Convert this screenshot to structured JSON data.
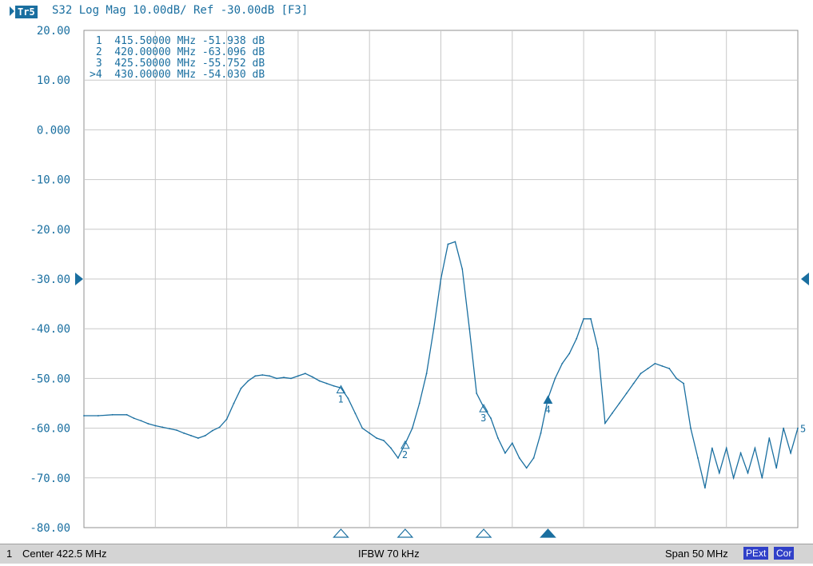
{
  "header": {
    "trace_badge": "Tr5",
    "trace_title": "S32 Log Mag 10.00dB/ Ref -30.00dB [F3]"
  },
  "status_bar": {
    "channel": "1",
    "center": "Center 422.5 MHz",
    "ifbw": "IFBW 70 kHz",
    "span": "Span 50 MHz",
    "badges": [
      "PExt",
      "Cor"
    ]
  },
  "colors": {
    "trace": "#1a6fa0",
    "grid": "#c8c8c8",
    "axis_text": "#1a6fa0",
    "status_badge": "#3040c8"
  },
  "chart_data": {
    "type": "line",
    "title": "S32 Log Mag 10.00dB/ Ref -30.00dB [F3]",
    "xlabel": "",
    "ylabel": "",
    "xlim": [
      397.5,
      447.5
    ],
    "ylim": [
      -80,
      20
    ],
    "grid": true,
    "ytick_labels": [
      "20.00",
      "10.00",
      "0.000",
      "-10.00",
      "-20.00",
      "-30.00",
      "-40.00",
      "-50.00",
      "-60.00",
      "-70.00",
      "-80.00"
    ],
    "reference_level": -30,
    "series": [
      {
        "x": [
          397.5,
          398.5,
          399.5,
          400.5,
          401.0,
          401.5,
          402.0,
          402.5,
          403.0,
          403.5,
          404.0,
          404.5,
          405.0,
          405.5,
          406.0,
          406.5,
          407.0,
          407.5,
          408.0,
          408.5,
          409.0,
          409.5,
          410.0,
          410.5,
          411.0,
          411.5,
          412.0,
          412.5,
          413.0,
          413.5,
          414.0,
          414.5,
          415.0,
          415.5,
          416.0,
          416.5,
          417.0,
          417.5,
          418.0,
          418.5,
          419.0,
          419.5,
          420.0,
          420.5,
          421.0,
          421.5,
          422.0,
          422.5,
          423.0,
          423.5,
          424.0,
          424.5,
          425.0,
          425.5,
          426.0,
          426.5,
          427.0,
          427.5,
          428.0,
          428.5,
          429.0,
          429.5,
          430.0,
          430.5,
          431.0,
          431.5,
          432.0,
          432.5,
          433.0,
          433.5,
          434.0,
          434.5,
          435.0,
          435.5,
          436.0,
          436.5,
          437.0,
          437.5,
          438.0,
          438.5,
          439.0,
          439.5,
          440.0,
          440.5,
          441.0,
          441.5,
          442.0,
          442.5,
          443.0,
          443.5,
          444.0,
          444.5,
          445.0,
          445.5,
          446.0,
          446.5,
          447.0,
          447.5
        ],
        "values": [
          -57.5,
          -57.5,
          -57.3,
          -57.3,
          -58.0,
          -58.5,
          -59.1,
          -59.5,
          -59.8,
          -60.1,
          -60.4,
          -61.0,
          -61.5,
          -62.0,
          -61.5,
          -60.5,
          -59.8,
          -58.2,
          -55.0,
          -52.0,
          -50.5,
          -49.5,
          -49.3,
          -49.5,
          -50.0,
          -49.8,
          -50.0,
          -49.5,
          -49.0,
          -49.7,
          -50.5,
          -51.0,
          -51.5,
          -51.9,
          -54.0,
          -57.0,
          -60.0,
          -61.0,
          -62.0,
          -62.5,
          -64.0,
          -66.0,
          -63.1,
          -60.0,
          -55.0,
          -49.0,
          -40.0,
          -30.0,
          -23.0,
          -22.5,
          -28.0,
          -40.0,
          -53.0,
          -55.8,
          -58.0,
          -62.0,
          -65.0,
          -63.0,
          -66.0,
          -68.0,
          -66.0,
          -61.0,
          -54.0,
          -50.0,
          -47.0,
          -45.0,
          -42.0,
          -38.0,
          -38.0,
          -44.0,
          -59.0,
          -57.0,
          -55.0,
          -53.0,
          -51.0,
          -49.0,
          -48.0,
          -47.0,
          -47.5,
          -48.0,
          -50.0,
          -51.0,
          -60.0,
          -66.0,
          -72.0,
          -64.0,
          -69.0,
          -64.0,
          -70.0,
          -65.0,
          -69.0,
          -64.0,
          -70.0,
          -62.0,
          -68.0,
          -60.0,
          -65.0,
          -60.0
        ]
      }
    ],
    "markers": [
      {
        "num": "1",
        "label": "1",
        "freq": "415.50000 MHz",
        "value": "-51.938 dB",
        "x": 415.5,
        "y": -51.938,
        "readout_prefix": " "
      },
      {
        "num": "2",
        "label": "2",
        "freq": "420.00000 MHz",
        "value": "-63.096 dB",
        "x": 420.0,
        "y": -63.096,
        "readout_prefix": " "
      },
      {
        "num": "3",
        "label": "3",
        "freq": "425.50000 MHz",
        "value": "-55.752 dB",
        "x": 425.5,
        "y": -55.752,
        "readout_prefix": " "
      },
      {
        "num": "4",
        "label": "4",
        "freq": "430.00000 MHz",
        "value": "-54.030 dB",
        "x": 430.0,
        "y": -54.03,
        "readout_prefix": ">",
        "active": true
      }
    ],
    "trace_end_label": "5"
  }
}
